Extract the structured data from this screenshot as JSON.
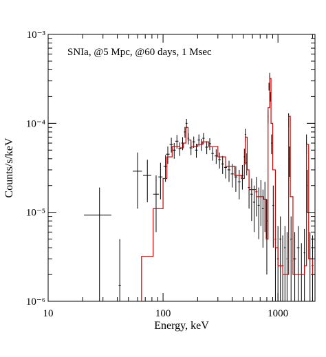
{
  "chart_data": {
    "type": "spectrum",
    "annotation": "SNIa, @5 Mpc, @60 days, 1 Msec",
    "xlabel": "Energy, keV",
    "ylabel": "Counts/s/keV",
    "xlog": true,
    "ylog": true,
    "xlim": [
      10,
      2100
    ],
    "ylim": [
      1e-06,
      0.001
    ],
    "xticks": [
      10,
      100,
      1000
    ],
    "xminorticks": [
      20,
      30,
      40,
      50,
      60,
      70,
      80,
      90,
      200,
      300,
      400,
      500,
      600,
      700,
      800,
      900,
      2000
    ],
    "yticks": [
      {
        "value": 1e-06,
        "label": "10⁻⁶"
      },
      {
        "value": 1e-05,
        "label": "10⁻⁵"
      },
      {
        "value": 0.0001,
        "label": "10⁻⁴"
      },
      {
        "value": 0.001,
        "label": "10⁻³"
      }
    ],
    "yminorticks": [
      2e-06,
      3e-06,
      4e-06,
      5e-06,
      6e-06,
      7e-06,
      8e-06,
      9e-06,
      2e-05,
      3e-05,
      4e-05,
      5e-05,
      6e-05,
      7e-05,
      8e-05,
      9e-05,
      0.0002,
      0.0003,
      0.0004,
      0.0005,
      0.0006,
      0.0007,
      0.0008,
      0.0009
    ],
    "model": {
      "color": "#cc0000",
      "step": "post",
      "x": [
        65,
        82,
        100,
        108,
        120,
        140,
        150,
        158,
        165,
        175,
        200,
        220,
        250,
        300,
        350,
        420,
        480,
        510,
        520,
        540,
        560,
        650,
        750,
        790,
        820,
        847,
        870,
        900,
        950,
        1000,
        1100,
        1200,
        1238,
        1280,
        1350,
        1700,
        1771,
        1850,
        2000
      ],
      "values": [
        3.2e-06,
        1.1e-05,
        2.4e-05,
        4.2e-05,
        5.5e-05,
        5.3e-05,
        6e-05,
        9e-05,
        6.5e-05,
        5.5e-05,
        5.8e-05,
        6.2e-05,
        5.5e-05,
        4.2e-05,
        3.3e-05,
        2.6e-05,
        2.4e-05,
        3.5e-05,
        7e-05,
        3e-05,
        1.8e-05,
        1.5e-05,
        1.4e-05,
        5e-06,
        0.00015,
        0.00032,
        0.0001,
        3e-05,
        4e-06,
        2.5e-06,
        2e-06,
        2e-06,
        0.00012,
        1.5e-05,
        2e-06,
        2.5e-06,
        5.8e-05,
        3e-06,
        2e-06
      ]
    },
    "data": {
      "color": "#000000",
      "x": [
        28,
        42,
        60,
        73,
        87,
        95,
        105,
        110,
        118,
        125,
        132,
        140,
        148,
        155,
        160,
        166,
        175,
        185,
        195,
        205,
        215,
        225,
        240,
        255,
        270,
        290,
        310,
        330,
        350,
        375,
        400,
        430,
        460,
        490,
        510,
        520,
        535,
        560,
        590,
        620,
        650,
        680,
        710,
        740,
        770,
        800,
        820,
        835,
        847,
        860,
        880,
        910,
        950,
        1000,
        1050,
        1100,
        1150,
        1200,
        1238,
        1260,
        1300,
        1400,
        1500,
        1600,
        1700,
        1771,
        1800,
        1900,
        2000
      ],
      "xerr": [
        7.5,
        1,
        5.5,
        6,
        5,
        4,
        4,
        4,
        4,
        4,
        4,
        4,
        4,
        3,
        3,
        3,
        5,
        5,
        5,
        5,
        5,
        5,
        7,
        7,
        7,
        9,
        9,
        9,
        10,
        11,
        12,
        13,
        13,
        10,
        6,
        6,
        8,
        12,
        14,
        14,
        14,
        14,
        14,
        14,
        12,
        10,
        8,
        6,
        6,
        6,
        10,
        15,
        18,
        20,
        20,
        20,
        20,
        15,
        10,
        12,
        20,
        40,
        40,
        40,
        30,
        15,
        15,
        40,
        40
      ],
      "values": [
        9.3e-06,
        1.5e-06,
        2.9e-05,
        2.6e-05,
        1.6e-05,
        2.5e-05,
        3.3e-05,
        4.5e-05,
        5.8e-05,
        5e-05,
        6.3e-05,
        5.2e-05,
        6e-05,
        8e-05,
        0.0001,
        6.8e-05,
        5.3e-05,
        6.2e-05,
        5e-05,
        6.5e-05,
        5.8e-05,
        6.8e-05,
        5.4e-05,
        5.9e-05,
        4.6e-05,
        4.3e-05,
        3.9e-05,
        3.5e-05,
        3.2e-05,
        3e-05,
        2.7e-05,
        2.5e-05,
        2.2e-05,
        2.6e-05,
        4.2e-05,
        7.5e-05,
        3.6e-05,
        1.9e-05,
        1.6e-05,
        1.3e-05,
        1.7e-05,
        1.2e-05,
        1.5e-05,
        1.1e-05,
        1.4e-05,
        8e-06,
        0.00012,
        0.00026,
        0.00034,
        0.0002,
        6e-05,
        1.2e-05,
        5e-06,
        3e-06,
        5e-06,
        2.5e-06,
        4e-06,
        3e-06,
        0.00011,
        4e-05,
        5e-06,
        3e-06,
        4e-06,
        2e-06,
        3.5e-06,
        6e-05,
        2e-05,
        3e-06,
        2.5e-06
      ],
      "yerr": [
        9.7e-06,
        3.5e-06,
        1.8e-05,
        1.3e-05,
        1e-05,
        1.1e-05,
        1.1e-05,
        1e-05,
        1.1e-05,
        1e-05,
        1.1e-05,
        9e-06,
        1e-05,
        1.1e-05,
        1.2e-05,
        1e-05,
        9e-06,
        9e-06,
        9e-06,
        1e-05,
        9e-06,
        1e-05,
        9e-06,
        9e-06,
        8e-06,
        8e-06,
        8e-06,
        8e-06,
        8e-06,
        8e-06,
        8e-06,
        8e-06,
        8e-06,
        8e-06,
        1e-05,
        1.2e-05,
        1e-05,
        8e-06,
        8e-06,
        7e-06,
        8e-06,
        7e-06,
        8e-06,
        7e-06,
        8e-06,
        6e-06,
        2e-05,
        2.6e-05,
        3e-05,
        2.4e-05,
        1.5e-05,
        8e-06,
        5e-06,
        4e-06,
        4e-06,
        3e-06,
        3e-06,
        3e-06,
        2e-05,
        1.5e-05,
        4e-06,
        3e-06,
        3e-06,
        2.5e-06,
        3e-06,
        1.5e-05,
        1e-05,
        3e-06,
        3e-06
      ]
    }
  }
}
